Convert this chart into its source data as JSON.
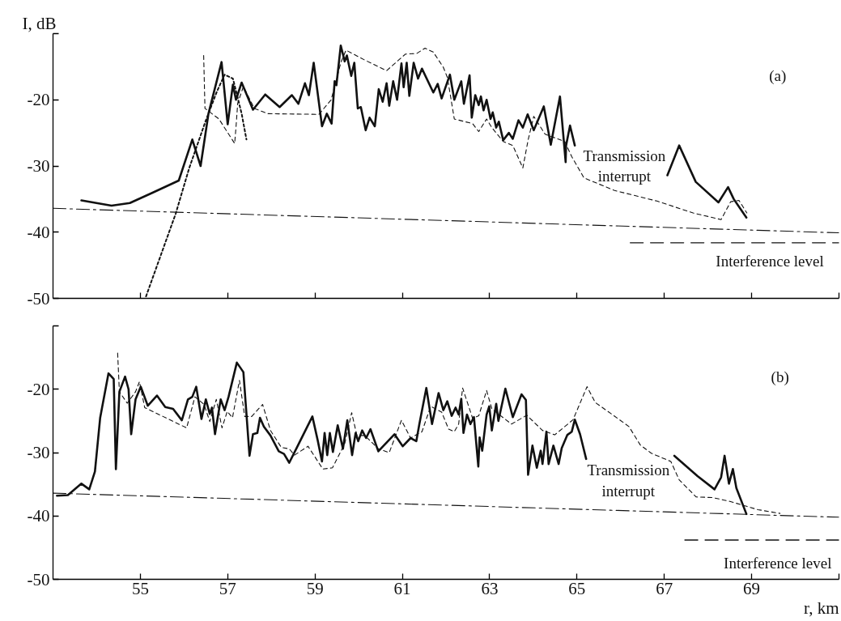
{
  "chart_data": [
    {
      "type": "line",
      "ylabel": "I, dB",
      "xlim": [
        53,
        71
      ],
      "ylim": [
        -50,
        -10
      ],
      "xticks": [
        55,
        57,
        59,
        61,
        63,
        65,
        67,
        69,
        {
          "value": 71,
          "label": null
        }
      ],
      "yticks": [
        -50,
        -40,
        -30,
        -20,
        {
          "value": -10,
          "label": null
        }
      ],
      "tick_labels": "y",
      "series": [
        {
          "color": "#111111",
          "line_style": "solid",
          "x": [
            53.65,
            54.34,
            54.76,
            55.26,
            55.88,
            56.19,
            56.38,
            56.56,
            56.86,
            57.0,
            57.12,
            57.19,
            57.32,
            57.58,
            57.86,
            58.19,
            58.47,
            58.62,
            58.77,
            58.86,
            58.97,
            59.16,
            59.27,
            59.38,
            59.45,
            59.49,
            59.59,
            59.68,
            59.73,
            59.83,
            59.9,
            59.98,
            60.05,
            60.16,
            60.25,
            60.37,
            60.46,
            60.55,
            60.64,
            60.7,
            60.79,
            60.88,
            60.98,
            61.03,
            61.1,
            61.16,
            61.26,
            61.36,
            61.45,
            61.71,
            61.81,
            61.9,
            62.09,
            62.19,
            62.35,
            62.41,
            62.54,
            62.59,
            62.67,
            62.75,
            62.8,
            62.86,
            62.93,
            63.02,
            63.07,
            63.15,
            63.21,
            63.31,
            63.44,
            63.53,
            63.66,
            63.76,
            63.87,
            64.01,
            64.24,
            64.4,
            64.61,
            64.74,
            64.75,
            64.84,
            64.95,
            66.0,
            67.07,
            67.34,
            67.72,
            68.24,
            68.46,
            68.59,
            68.88
          ],
          "values": [
            -35.2,
            -36.0,
            -35.6,
            -34.1,
            -32.2,
            -26.0,
            -30.0,
            -22.1,
            -14.3,
            -23.7,
            -17.7,
            -20.0,
            -17.4,
            -21.5,
            -19.2,
            -21.1,
            -19.3,
            -20.6,
            -17.5,
            -19.3,
            -14.4,
            -24.0,
            -22.1,
            -23.6,
            -17.2,
            -17.8,
            -11.8,
            -14.2,
            -13.3,
            -16.4,
            -14.4,
            -21.3,
            -21.1,
            -24.6,
            -22.7,
            -24.0,
            -18.4,
            -20.3,
            -17.5,
            -20.9,
            -17.2,
            -20.0,
            -14.5,
            -18.1,
            -14.4,
            -19.4,
            -14.4,
            -16.8,
            -15.3,
            -18.9,
            -17.6,
            -19.8,
            -16.2,
            -20.0,
            -17.2,
            -20.6,
            -16.3,
            -22.7,
            -19.3,
            -20.8,
            -19.5,
            -21.6,
            -20.0,
            -22.9,
            -21.9,
            -24.2,
            -23.3,
            -26.1,
            -25.0,
            -25.9,
            -23.1,
            -24.2,
            -22.2,
            -24.6,
            -21.0,
            -26.8,
            -19.5,
            -29.4,
            -26.9,
            -23.9,
            -26.9,
            null,
            -31.4,
            -26.9,
            -32.4,
            -35.5,
            -33.2,
            -35.0,
            -37.8
          ]
        },
        {
          "color": "#111111",
          "line_style": "dashed",
          "x": [
            56.45,
            56.48,
            56.8,
            57.16,
            57.19,
            57.23,
            57.36,
            57.61,
            57.92,
            59.09,
            59.37,
            59.59,
            59.71,
            60.14,
            60.64,
            60.88,
            61.07,
            61.33,
            61.52,
            61.71,
            61.94,
            62.03,
            62.09,
            62.19,
            62.61,
            62.75,
            62.93,
            63.05,
            63.31,
            63.53,
            63.76,
            63.88,
            64.01,
            64.27,
            64.72,
            64.88,
            65.16,
            65.86,
            66.83,
            67.66,
            68.3,
            68.52,
            68.71,
            68.89
          ],
          "values": [
            -13.3,
            -21.3,
            -22.9,
            -26.6,
            -24.2,
            -20.5,
            -18.0,
            -21.3,
            -22.1,
            -22.2,
            -20.0,
            -14.4,
            -12.5,
            -14.0,
            -15.6,
            -14.2,
            -13.1,
            -13.0,
            -12.2,
            -12.8,
            -15.1,
            -16.6,
            -18.9,
            -22.9,
            -23.6,
            -24.8,
            -22.9,
            -24.2,
            -26.3,
            -26.9,
            -30.3,
            -26.1,
            -22.5,
            -25.2,
            -26.3,
            -28.6,
            -31.8,
            -33.7,
            -35.3,
            -37.1,
            -38.1,
            -35.4,
            -35.2,
            -37.1
          ]
        },
        {
          "color": "#111111",
          "line_style": "dotted",
          "x": [
            55.13,
            55.5,
            55.81,
            56.12,
            56.49,
            56.75,
            56.93,
            57.12,
            57.23,
            57.32,
            57.43
          ],
          "values": [
            -49.7,
            -42.9,
            -37.2,
            -30.3,
            -23.3,
            -18.8,
            -16.2,
            -16.8,
            -19.7,
            -22.1,
            -26.0
          ]
        },
        {
          "color": "#111111",
          "line_style": "dashdot",
          "x": [
            53,
            71
          ],
          "values": [
            -36.4,
            -40.1
          ]
        },
        {
          "color": "#111111",
          "line_style": "longdash",
          "x": [
            66.22,
            71
          ],
          "values": [
            -41.6,
            -41.6
          ]
        }
      ],
      "annotations": [
        "(a)",
        "Transmission\ninterrupt",
        "Interference level"
      ]
    },
    {
      "type": "line",
      "xlabel": "r, km",
      "xlim": [
        53,
        71
      ],
      "ylim": [
        -50,
        -10
      ],
      "xticks": [
        55,
        57,
        59,
        61,
        63,
        65,
        67,
        69,
        {
          "value": 71,
          "label": null
        }
      ],
      "yticks": [
        -50,
        -40,
        -30,
        -20,
        {
          "value": -10,
          "label": null
        }
      ],
      "series": [
        {
          "color": "#111111",
          "line_style": "solid",
          "x": [
            53.09,
            53.34,
            53.65,
            53.83,
            53.96,
            54.08,
            54.27,
            54.39,
            54.44,
            54.52,
            54.65,
            54.73,
            54.79,
            54.89,
            55.01,
            55.17,
            55.38,
            55.57,
            55.75,
            55.95,
            56.09,
            56.19,
            56.28,
            56.4,
            56.5,
            56.59,
            56.64,
            56.71,
            56.84,
            56.93,
            57.02,
            57.21,
            57.36,
            57.5,
            57.58,
            57.68,
            57.74,
            57.83,
            57.98,
            58.17,
            58.29,
            58.41,
            58.6,
            58.94,
            59.06,
            59.16,
            59.22,
            59.28,
            59.34,
            59.41,
            59.52,
            59.64,
            59.74,
            59.85,
            59.93,
            59.99,
            60.08,
            60.17,
            60.27,
            60.45,
            60.82,
            61.01,
            61.19,
            61.32,
            61.39,
            61.55,
            61.68,
            61.83,
            61.94,
            62.03,
            62.13,
            62.22,
            62.29,
            62.35,
            62.4,
            62.48,
            62.56,
            62.64,
            62.74,
            62.77,
            62.83,
            62.93,
            62.99,
            63.05,
            63.15,
            63.2,
            63.36,
            63.53,
            63.73,
            63.83,
            63.88,
            63.98,
            64.08,
            64.17,
            64.21,
            64.3,
            64.35,
            64.46,
            64.58,
            64.65,
            64.78,
            64.88,
            64.95,
            65.07,
            65.21,
            66.2,
            67.23,
            67.76,
            68.15,
            68.3,
            68.38,
            68.48,
            68.57,
            68.65,
            68.88
          ],
          "values": [
            -36.8,
            -36.7,
            -34.9,
            -35.8,
            -33.0,
            -24.5,
            -17.5,
            -18.4,
            -32.6,
            -20.4,
            -18.0,
            -20.0,
            -27.1,
            -21.6,
            -19.6,
            -22.6,
            -21.0,
            -22.8,
            -23.1,
            -24.9,
            -21.6,
            -21.2,
            -19.6,
            -24.7,
            -21.6,
            -23.9,
            -22.9,
            -27.1,
            -21.6,
            -23.3,
            -21.2,
            -15.8,
            -17.3,
            -30.5,
            -27.1,
            -26.9,
            -24.5,
            -25.9,
            -27.3,
            -29.8,
            -30.2,
            -31.6,
            -29.0,
            -24.3,
            -28.0,
            -31.4,
            -26.9,
            -30.4,
            -26.9,
            -29.9,
            -25.7,
            -29.4,
            -24.9,
            -30.4,
            -26.9,
            -28.2,
            -26.5,
            -27.7,
            -26.3,
            -29.8,
            -27.1,
            -29.0,
            -27.7,
            -28.2,
            -25.5,
            -19.8,
            -25.5,
            -20.6,
            -23.3,
            -21.9,
            -24.2,
            -22.9,
            -24.0,
            -21.5,
            -26.9,
            -24.0,
            -25.5,
            -24.4,
            -32.2,
            -27.6,
            -29.7,
            -24.0,
            -22.7,
            -26.5,
            -22.3,
            -25.0,
            -19.9,
            -24.4,
            -20.8,
            -21.7,
            -33.5,
            -28.9,
            -32.4,
            -29.7,
            -31.8,
            -26.7,
            -31.8,
            -28.9,
            -31.8,
            -29.3,
            -27.2,
            -26.7,
            -24.8,
            -27.1,
            -31.0,
            null,
            -30.5,
            -33.7,
            -35.8,
            -33.9,
            -30.5,
            -34.9,
            -32.6,
            -35.6,
            -39.7
          ]
        },
        {
          "color": "#111111",
          "line_style": "dashed",
          "x": [
            54.48,
            54.52,
            54.7,
            54.89,
            54.98,
            55.1,
            56.06,
            56.25,
            56.46,
            56.59,
            56.74,
            56.87,
            56.99,
            57.11,
            57.27,
            57.39,
            57.55,
            57.8,
            57.98,
            58.23,
            58.41,
            58.53,
            58.84,
            59.18,
            59.4,
            59.68,
            59.84,
            59.96,
            60.14,
            60.45,
            60.7,
            60.98,
            61.19,
            61.45,
            61.65,
            61.9,
            62.06,
            62.19,
            62.29,
            62.38,
            62.51,
            62.61,
            62.75,
            62.93,
            63.05,
            63.5,
            63.85,
            64.21,
            64.49,
            64.72,
            64.91,
            65.23,
            65.42,
            65.81,
            66.19,
            66.45,
            66.7,
            67.15,
            67.34,
            67.73,
            68.11,
            68.5,
            69.14,
            69.65
          ],
          "values": [
            -14.3,
            -20.4,
            -22.2,
            -20.4,
            -18.8,
            -22.9,
            -26.1,
            -21.2,
            -22.4,
            -25.1,
            -21.6,
            -26.1,
            -23.5,
            -24.5,
            -18.6,
            -24.3,
            -24.3,
            -22.4,
            -26.5,
            -29.2,
            -29.4,
            -30.4,
            -29.0,
            -32.6,
            -32.4,
            -28.6,
            -23.7,
            -27.3,
            -27.3,
            -29.4,
            -30.0,
            -24.9,
            -27.7,
            -26.7,
            -22.7,
            -23.6,
            -26.3,
            -26.7,
            -25.5,
            -19.8,
            -22.5,
            -24.6,
            -24.2,
            -20.2,
            -23.1,
            -25.5,
            -24.1,
            -26.5,
            -27.2,
            -25.9,
            -24.8,
            -19.6,
            -22.1,
            -24.0,
            -25.9,
            -28.8,
            -30.1,
            -31.4,
            -34.3,
            -37.0,
            -37.1,
            -37.7,
            -39.0,
            -39.6
          ]
        },
        {
          "color": "#111111",
          "line_style": "dashdot",
          "x": [
            53,
            71
          ],
          "values": [
            -36.4,
            -40.2
          ]
        },
        {
          "color": "#111111",
          "line_style": "longdash",
          "x": [
            67.47,
            71
          ],
          "values": [
            -43.8,
            -43.8
          ]
        }
      ],
      "annotations": [
        "(b)",
        "Transmission\ninterrupt",
        "Interference level"
      ]
    }
  ]
}
